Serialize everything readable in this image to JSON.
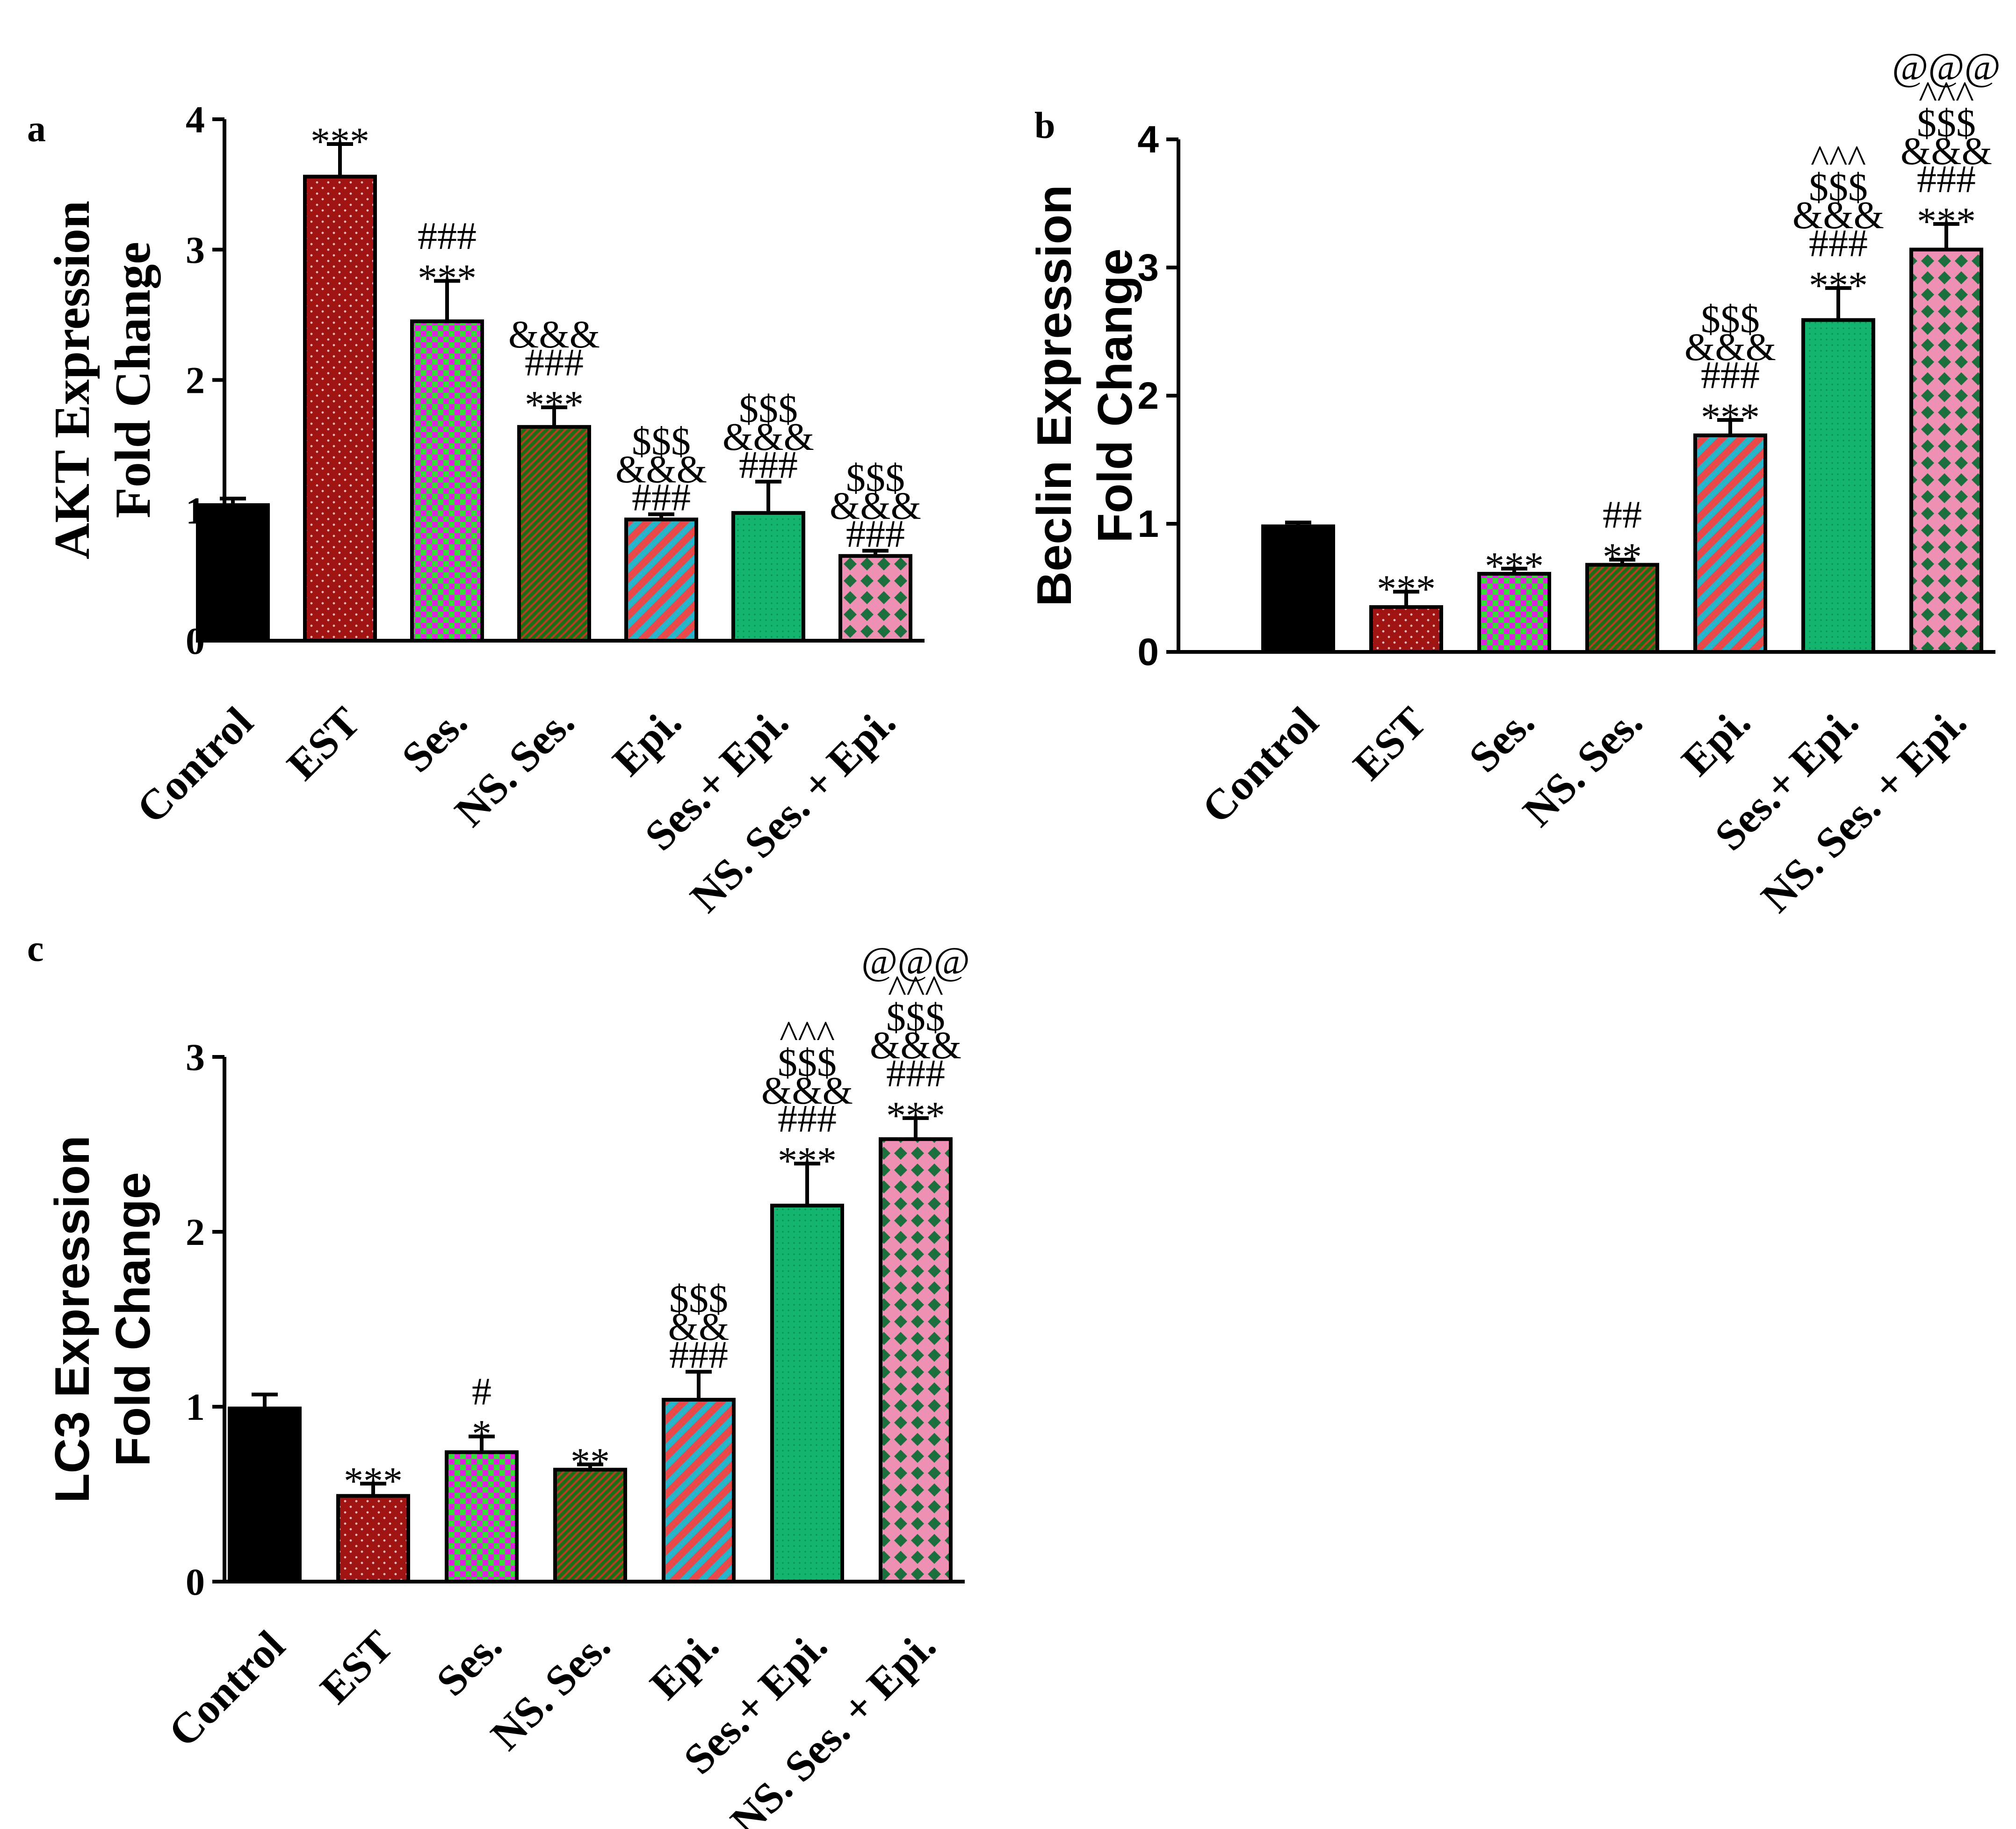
{
  "patterns": {
    "EST": {
      "kind": "dots",
      "bg": "#a01414",
      "fg": "#e8b8b8"
    },
    "Ses.": {
      "kind": "check",
      "bg": "#33e033",
      "fg": "#e020e0"
    },
    "NS. Ses.": {
      "kind": "diag",
      "bg": "#1e6e18",
      "fg": "#c03a1e"
    },
    "Epi.": {
      "kind": "stripe",
      "bg": "#e84848",
      "fg": "#28b4c8"
    },
    "Ses.+ Epi.": {
      "kind": "fine",
      "bg": "#12b46e",
      "fg": "#0a8a54"
    },
    "NS. Ses. + Epi.": {
      "kind": "lattice",
      "bg": "#ee90b4",
      "fg": "#1c6e3c"
    },
    "Control": {
      "kind": "solid",
      "bg": "#000000",
      "fg": "#000000"
    }
  },
  "chart_data": [
    {
      "panel": "a",
      "type": "bar",
      "ylabel_lines": [
        "AKT Expression",
        "Fold Change"
      ],
      "ylabel_font": "serif",
      "tick_font": "serif",
      "ylim": [
        0,
        4
      ],
      "yticks": [
        "0",
        "1",
        "2",
        "3",
        "4"
      ],
      "categories": [
        "Control",
        "EST",
        "Ses.",
        "NS. Ses.",
        "Epi.",
        "Ses.+ Epi.",
        "NS. Ses. + Epi."
      ],
      "values": [
        1.04,
        3.56,
        2.45,
        1.64,
        0.93,
        0.98,
        0.65
      ],
      "errors": [
        0.05,
        0.25,
        0.31,
        0.15,
        0.04,
        0.24,
        0.04
      ],
      "annotations": [
        [],
        [
          "***"
        ],
        [
          "***",
          "###"
        ],
        [
          "***",
          "###",
          "&&&"
        ],
        [
          "###",
          "&&&",
          "$$$"
        ],
        [
          "###",
          "&&&",
          "$$$"
        ],
        [
          "###",
          "&&&",
          "$$$"
        ]
      ]
    },
    {
      "panel": "b",
      "type": "bar",
      "ylabel_lines": [
        "Beclin Expression",
        "Fold Change"
      ],
      "ylabel_font": "sans",
      "tick_font": "sans",
      "ylim": [
        0,
        4
      ],
      "yticks": [
        "0",
        "1",
        "2",
        "3",
        "4"
      ],
      "categories": [
        "Control",
        "EST",
        "Ses.",
        "NS. Ses.",
        "Epi.",
        "Ses.+ Epi.",
        "NS. Ses. + Epi."
      ],
      "values": [
        0.98,
        0.35,
        0.61,
        0.68,
        1.69,
        2.59,
        3.14
      ],
      "errors": [
        0.03,
        0.12,
        0.04,
        0.04,
        0.12,
        0.25,
        0.2
      ],
      "annotations": [
        [],
        [
          "***"
        ],
        [
          "***"
        ],
        [
          "**",
          "##"
        ],
        [
          "***",
          "###",
          "&&&",
          "$$$"
        ],
        [
          "***",
          "###",
          "&&&",
          "$$$",
          "^^^"
        ],
        [
          "***",
          "###",
          "&&&",
          "$$$",
          "^^^",
          "@@@"
        ]
      ]
    },
    {
      "panel": "c",
      "type": "bar",
      "ylabel_lines": [
        "LC3 Expression",
        "Fold Change"
      ],
      "ylabel_font": "sans",
      "tick_font": "serif",
      "ylim": [
        0,
        3
      ],
      "yticks": [
        "0",
        "1",
        "2",
        "3"
      ],
      "categories": [
        "Control",
        "EST",
        "Ses.",
        "NS. Ses.",
        "Epi.",
        "Ses.+ Epi.",
        "NS. Ses. + Epi."
      ],
      "values": [
        0.99,
        0.49,
        0.74,
        0.64,
        1.04,
        2.15,
        2.53
      ],
      "errors": [
        0.08,
        0.07,
        0.09,
        0.03,
        0.16,
        0.24,
        0.12
      ],
      "annotations": [
        [],
        [
          "***"
        ],
        [
          "*",
          "#"
        ],
        [
          "**"
        ],
        [
          "###",
          "&&",
          "$$$"
        ],
        [
          "***",
          "###",
          "&&&",
          "$$$",
          "^^^"
        ],
        [
          "***",
          "###",
          "&&&",
          "$$$",
          "^^^",
          "@@@"
        ]
      ]
    }
  ]
}
